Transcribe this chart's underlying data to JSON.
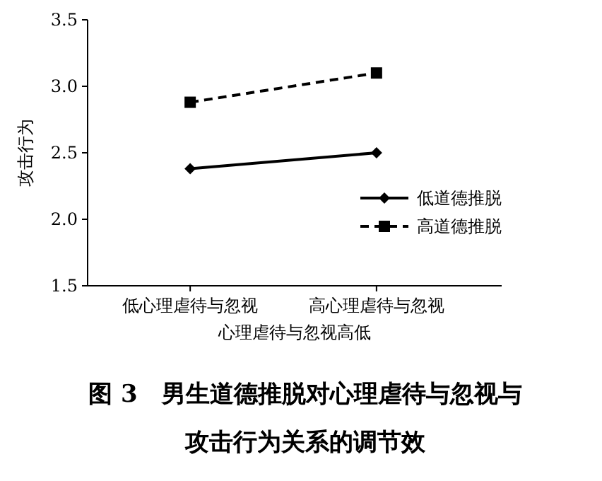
{
  "chart_data": {
    "type": "line",
    "title": "图 3　男生道德推脱对心理虐待与忽视与攻击行为关系的调节效",
    "xlabel": "心理虐待与忽视高低",
    "ylabel": "攻击行为",
    "categories": [
      "低心理虐待与忽视",
      "高心理虐待与忽视"
    ],
    "series": [
      {
        "name": "低道德推脱",
        "color": "#000000",
        "values": [
          2.38,
          2.5
        ],
        "marker": "diamond",
        "line_style": "solid"
      },
      {
        "name": "高道德推脱",
        "color": "#000000",
        "values": [
          2.88,
          3.1
        ],
        "marker": "square",
        "line_style": "dashed"
      }
    ],
    "ylim": [
      1.5,
      3.5
    ],
    "yticks": [
      1.5,
      {
        "value": 2,
        "label": "2.0"
      },
      2.5,
      {
        "value": 3,
        "label": "3.0"
      },
      3.5
    ],
    "legend": "right",
    "grid": false
  }
}
